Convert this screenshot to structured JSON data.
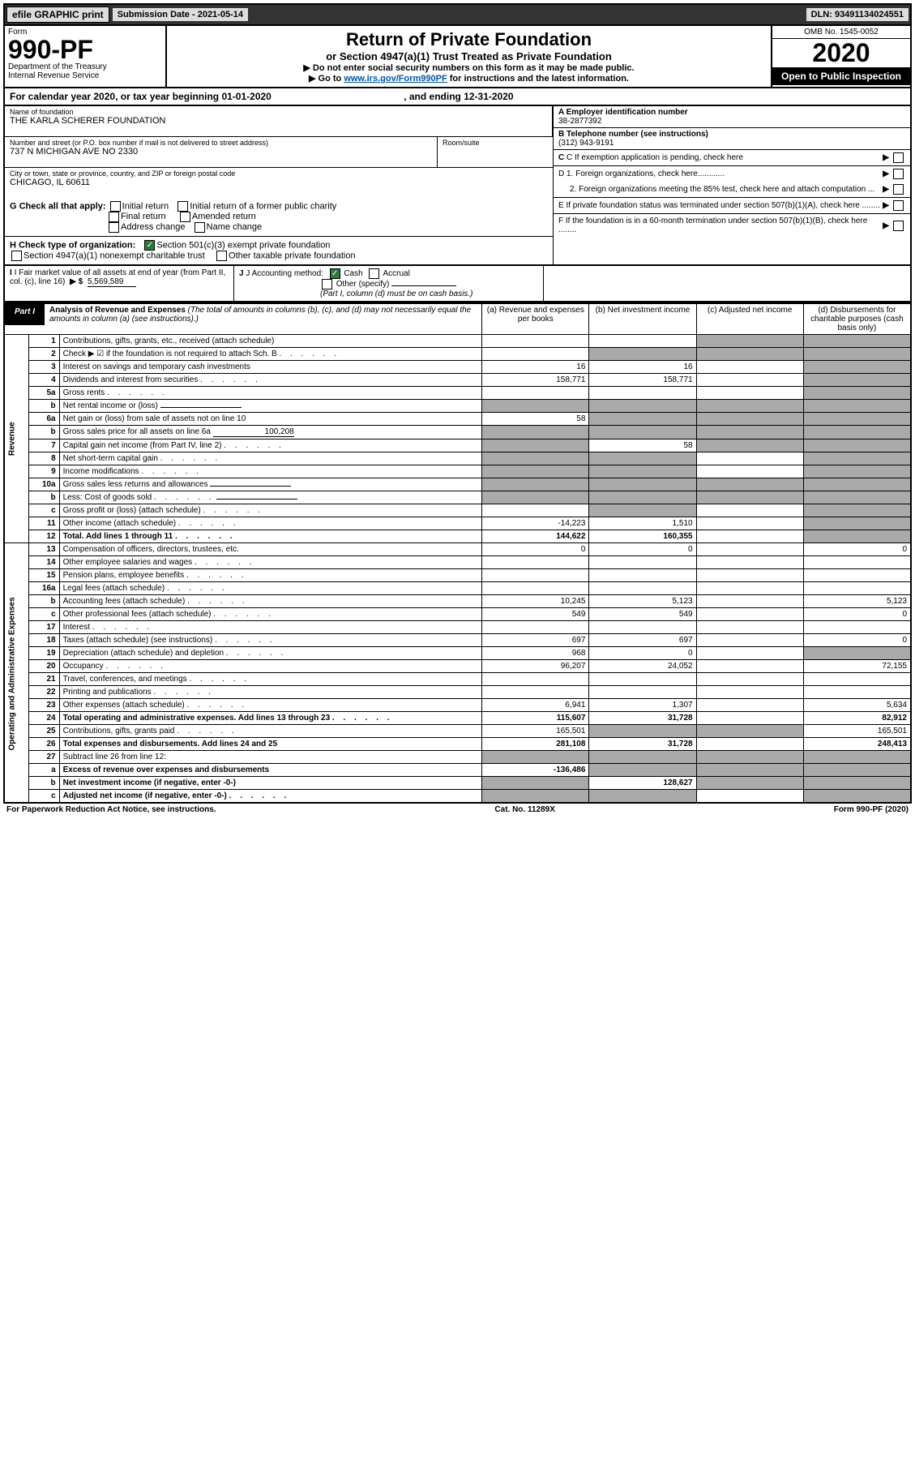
{
  "topbar": {
    "efile": "efile GRAPHIC print",
    "sub_label": "Submission Date - 2021-05-14",
    "dln": "DLN: 93491134024551"
  },
  "header": {
    "form": "Form",
    "form_num": "990-PF",
    "dept": "Department of the Treasury",
    "irs": "Internal Revenue Service",
    "title1": "Return of Private Foundation",
    "title2": "or Section 4947(a)(1) Trust Treated as Private Foundation",
    "instr1": "▶ Do not enter social security numbers on this form as it may be made public.",
    "instr2_pre": "▶ Go to ",
    "instr2_link": "www.irs.gov/Form990PF",
    "instr2_post": " for instructions and the latest information.",
    "omb": "OMB No. 1545-0052",
    "year": "2020",
    "open": "Open to Public Inspection"
  },
  "cal_year": {
    "text_pre": "For calendar year 2020, or tax year beginning ",
    "begin": "01-01-2020",
    "text_mid": " , and ending ",
    "end": "12-31-2020"
  },
  "name_block": {
    "label": "Name of foundation",
    "value": "THE KARLA SCHERER FOUNDATION",
    "addr_label": "Number and street (or P.O. box number if mail is not delivered to street address)",
    "addr": "737 N MICHIGAN AVE NO 2330",
    "room_label": "Room/suite",
    "city_label": "City or town, state or province, country, and ZIP or foreign postal code",
    "city": "CHICAGO, IL  60611"
  },
  "right_block": {
    "a_label": "A Employer identification number",
    "a_val": "38-2877392",
    "b_label": "B Telephone number (see instructions)",
    "b_val": "(312) 943-9191",
    "c_label": "C If exemption application is pending, check here",
    "d1": "D 1. Foreign organizations, check here............",
    "d2": "2. Foreign organizations meeting the 85% test, check here and attach computation ...",
    "e": "E  If private foundation status was terminated under section 507(b)(1)(A), check here ........",
    "f": "F  If the foundation is in a 60-month termination under section 507(b)(1)(B), check here ........"
  },
  "g_check": {
    "label": "G Check all that apply:",
    "items": [
      "Initial return",
      "Initial return of a former public charity",
      "Final return",
      "Amended return",
      "Address change",
      "Name change"
    ]
  },
  "h_check": {
    "label": "H Check type of organization:",
    "opt1": "Section 501(c)(3) exempt private foundation",
    "opt2": "Section 4947(a)(1) nonexempt charitable trust",
    "opt3": "Other taxable private foundation"
  },
  "i_block": {
    "label": "I Fair market value of all assets at end of year (from Part II, col. (c), line 16)",
    "arrow": "▶ $",
    "val": "5,569,589"
  },
  "j_block": {
    "label": "J Accounting method:",
    "cash": "Cash",
    "accrual": "Accrual",
    "other": "Other (specify)",
    "note": "(Part I, column (d) must be on cash basis.)"
  },
  "part1": {
    "label": "Part I",
    "title": "Analysis of Revenue and Expenses",
    "desc": "(The total of amounts in columns (b), (c), and (d) may not necessarily equal the amounts in column (a) (see instructions).)",
    "col_a": "(a) Revenue and expenses per books",
    "col_b": "(b) Net investment income",
    "col_c": "(c) Adjusted net income",
    "col_d": "(d) Disbursements for charitable purposes (cash basis only)"
  },
  "side_labels": {
    "revenue": "Revenue",
    "expenses": "Operating and Administrative Expenses"
  },
  "rows": [
    {
      "n": "1",
      "desc": "Contributions, gifts, grants, etc., received (attach schedule)",
      "a": "",
      "b": "",
      "c": "gray",
      "d": "gray"
    },
    {
      "n": "2",
      "desc": "Check ▶ ☑ if the foundation is not required to attach Sch. B",
      "a": "",
      "b": "gray",
      "c": "gray",
      "d": "gray",
      "dots": true
    },
    {
      "n": "3",
      "desc": "Interest on savings and temporary cash investments",
      "a": "16",
      "b": "16",
      "c": "",
      "d": "gray"
    },
    {
      "n": "4",
      "desc": "Dividends and interest from securities",
      "a": "158,771",
      "b": "158,771",
      "c": "",
      "d": "gray",
      "dots": true
    },
    {
      "n": "5a",
      "desc": "Gross rents",
      "a": "",
      "b": "",
      "c": "",
      "d": "gray",
      "dots": true
    },
    {
      "n": "b",
      "desc": "Net rental income or (loss)",
      "a": "gray",
      "b": "gray",
      "c": "gray",
      "d": "gray",
      "inline": true
    },
    {
      "n": "6a",
      "desc": "Net gain or (loss) from sale of assets not on line 10",
      "a": "58",
      "b": "gray",
      "c": "gray",
      "d": "gray"
    },
    {
      "n": "b",
      "desc": "Gross sales price for all assets on line 6a",
      "a": "gray",
      "b": "gray",
      "c": "gray",
      "d": "gray",
      "inline": true,
      "inline_val": "100,208"
    },
    {
      "n": "7",
      "desc": "Capital gain net income (from Part IV, line 2)",
      "a": "gray",
      "b": "58",
      "c": "gray",
      "d": "gray",
      "dots": true
    },
    {
      "n": "8",
      "desc": "Net short-term capital gain",
      "a": "gray",
      "b": "gray",
      "c": "",
      "d": "gray",
      "dots": true
    },
    {
      "n": "9",
      "desc": "Income modifications",
      "a": "gray",
      "b": "gray",
      "c": "",
      "d": "gray",
      "dots": true
    },
    {
      "n": "10a",
      "desc": "Gross sales less returns and allowances",
      "a": "gray",
      "b": "gray",
      "c": "gray",
      "d": "gray",
      "inline": true
    },
    {
      "n": "b",
      "desc": "Less: Cost of goods sold",
      "a": "gray",
      "b": "gray",
      "c": "gray",
      "d": "gray",
      "inline": true,
      "dots": true
    },
    {
      "n": "c",
      "desc": "Gross profit or (loss) (attach schedule)",
      "a": "",
      "b": "gray",
      "c": "",
      "d": "gray",
      "dots": true
    },
    {
      "n": "11",
      "desc": "Other income (attach schedule)",
      "a": "-14,223",
      "b": "1,510",
      "c": "",
      "d": "gray",
      "dots": true
    },
    {
      "n": "12",
      "desc": "Total. Add lines 1 through 11",
      "a": "144,622",
      "b": "160,355",
      "c": "",
      "d": "gray",
      "bold": true,
      "dots": true
    },
    {
      "n": "13",
      "desc": "Compensation of officers, directors, trustees, etc.",
      "a": "0",
      "b": "0",
      "c": "",
      "d": "0"
    },
    {
      "n": "14",
      "desc": "Other employee salaries and wages",
      "a": "",
      "b": "",
      "c": "",
      "d": "",
      "dots": true
    },
    {
      "n": "15",
      "desc": "Pension plans, employee benefits",
      "a": "",
      "b": "",
      "c": "",
      "d": "",
      "dots": true
    },
    {
      "n": "16a",
      "desc": "Legal fees (attach schedule)",
      "a": "",
      "b": "",
      "c": "",
      "d": "",
      "dots": true
    },
    {
      "n": "b",
      "desc": "Accounting fees (attach schedule)",
      "a": "10,245",
      "b": "5,123",
      "c": "",
      "d": "5,123",
      "dots": true
    },
    {
      "n": "c",
      "desc": "Other professional fees (attach schedule)",
      "a": "549",
      "b": "549",
      "c": "",
      "d": "0",
      "dots": true
    },
    {
      "n": "17",
      "desc": "Interest",
      "a": "",
      "b": "",
      "c": "",
      "d": "",
      "dots": true
    },
    {
      "n": "18",
      "desc": "Taxes (attach schedule) (see instructions)",
      "a": "697",
      "b": "697",
      "c": "",
      "d": "0",
      "dots": true
    },
    {
      "n": "19",
      "desc": "Depreciation (attach schedule) and depletion",
      "a": "968",
      "b": "0",
      "c": "",
      "d": "gray",
      "dots": true
    },
    {
      "n": "20",
      "desc": "Occupancy",
      "a": "96,207",
      "b": "24,052",
      "c": "",
      "d": "72,155",
      "dots": true
    },
    {
      "n": "21",
      "desc": "Travel, conferences, and meetings",
      "a": "",
      "b": "",
      "c": "",
      "d": "",
      "dots": true
    },
    {
      "n": "22",
      "desc": "Printing and publications",
      "a": "",
      "b": "",
      "c": "",
      "d": "",
      "dots": true
    },
    {
      "n": "23",
      "desc": "Other expenses (attach schedule)",
      "a": "6,941",
      "b": "1,307",
      "c": "",
      "d": "5,634",
      "dots": true
    },
    {
      "n": "24",
      "desc": "Total operating and administrative expenses. Add lines 13 through 23",
      "a": "115,607",
      "b": "31,728",
      "c": "",
      "d": "82,912",
      "bold": true,
      "dots": true
    },
    {
      "n": "25",
      "desc": "Contributions, gifts, grants paid",
      "a": "165,501",
      "b": "gray",
      "c": "gray",
      "d": "165,501",
      "dots": true
    },
    {
      "n": "26",
      "desc": "Total expenses and disbursements. Add lines 24 and 25",
      "a": "281,108",
      "b": "31,728",
      "c": "",
      "d": "248,413",
      "bold": true
    },
    {
      "n": "27",
      "desc": "Subtract line 26 from line 12:",
      "a": "gray",
      "b": "gray",
      "c": "gray",
      "d": "gray"
    },
    {
      "n": "a",
      "desc": "Excess of revenue over expenses and disbursements",
      "a": "-136,486",
      "b": "gray",
      "c": "gray",
      "d": "gray",
      "bold": true
    },
    {
      "n": "b",
      "desc": "Net investment income (if negative, enter -0-)",
      "a": "gray",
      "b": "128,627",
      "c": "gray",
      "d": "gray",
      "bold": true
    },
    {
      "n": "c",
      "desc": "Adjusted net income (if negative, enter -0-)",
      "a": "gray",
      "b": "gray",
      "c": "",
      "d": "gray",
      "bold": true,
      "dots": true
    }
  ],
  "footer": {
    "left": "For Paperwork Reduction Act Notice, see instructions.",
    "mid": "Cat. No. 11289X",
    "right": "Form 990-PF (2020)"
  }
}
